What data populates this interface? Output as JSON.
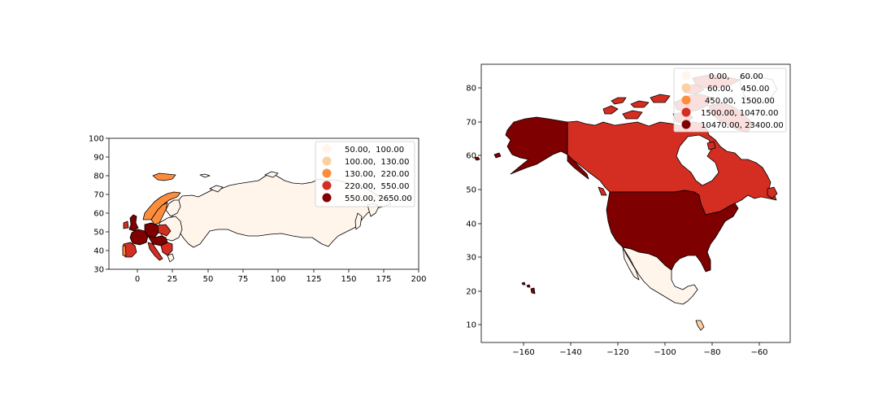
{
  "palette": [
    "#fff5eb",
    "#fdd0a2",
    "#fd8d3c",
    "#d42d21",
    "#7f0000"
  ],
  "maps": [
    {
      "id": "europe-russia",
      "xticks": [
        "0",
        "25",
        "50",
        "75",
        "100",
        "125",
        "150",
        "175",
        "200"
      ],
      "yticks": [
        "30",
        "40",
        "50",
        "60",
        "70",
        "80",
        "90",
        "100"
      ],
      "xlim": [
        -20,
        200
      ],
      "ylim": [
        30,
        100
      ],
      "legend": [
        {
          "label": "50.00,  100.00"
        },
        {
          "label": "100.00,  130.00"
        },
        {
          "label": "130.00,  220.00"
        },
        {
          "label": "220.00,  550.00"
        },
        {
          "label": "550.00, 2650.00"
        }
      ]
    },
    {
      "id": "north-america",
      "xticks": [
        "−160",
        "−140",
        "−120",
        "−100",
        "−80",
        "−60"
      ],
      "yticks": [
        "10",
        "20",
        "30",
        "40",
        "50",
        "60",
        "70",
        "80"
      ],
      "xlim": [
        -177,
        -50
      ],
      "ylim": [
        5,
        87
      ],
      "legend": [
        {
          "label": "0.00,    60.00"
        },
        {
          "label": "60.00,   450.00"
        },
        {
          "label": "450.00,  1500.00"
        },
        {
          "label": "1500.00, 10470.00"
        },
        {
          "label": "10470.00, 23400.00"
        }
      ]
    }
  ]
}
